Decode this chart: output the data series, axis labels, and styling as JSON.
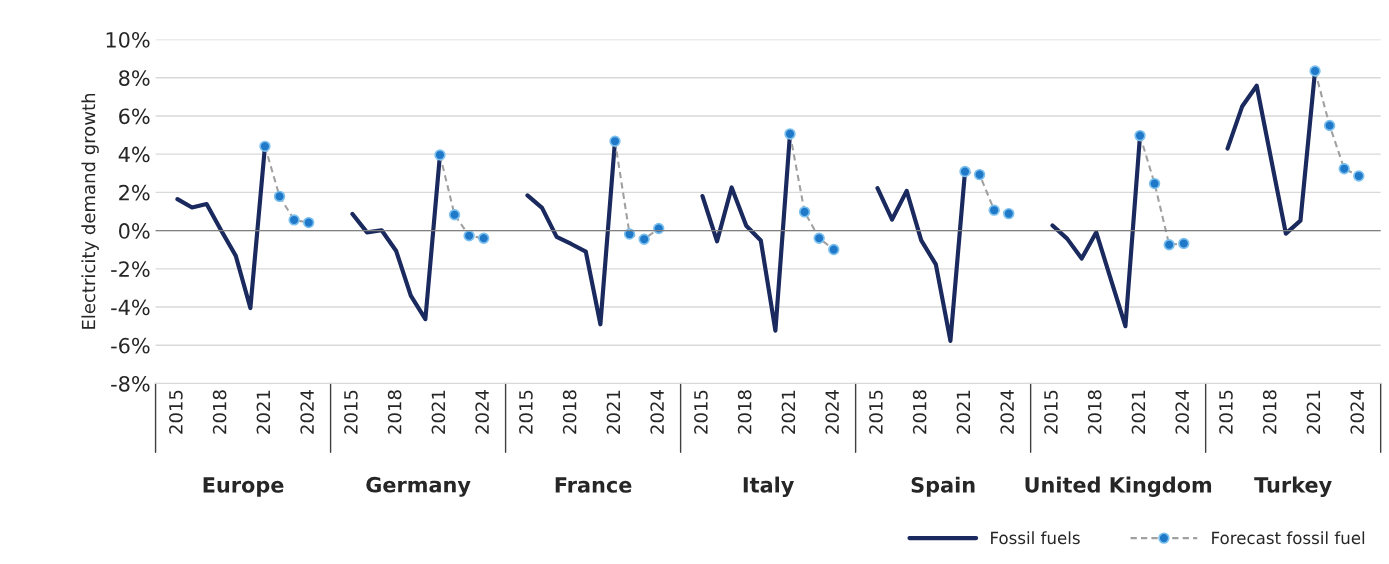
{
  "chart_data": {
    "type": "line",
    "ylabel": "Electricity demand growth",
    "categories": [
      null,
      "2015",
      null,
      null,
      "2018",
      null,
      null,
      "2021",
      null,
      null,
      "2024",
      null,
      null,
      "2015",
      null,
      null,
      "2018",
      null,
      null,
      "2021",
      null,
      null,
      "2024",
      null,
      null,
      "2015",
      null,
      null,
      "2018",
      null,
      null,
      "2021",
      null,
      null,
      "2024",
      null,
      null,
      "2015",
      null,
      null,
      "2018",
      null,
      null,
      "2021",
      null,
      null,
      "2024",
      null,
      null,
      "2015",
      null,
      null,
      "2018",
      null,
      null,
      "2021",
      null,
      null,
      "2024",
      null,
      null,
      "2015",
      null,
      null,
      "2018",
      null,
      null,
      "2021",
      null,
      null,
      "2024",
      null,
      null,
      "2015",
      null,
      null,
      "2018",
      null,
      null,
      "2021",
      null,
      null,
      "2024",
      null
    ],
    "series": [
      {
        "name": "Fossil fuels",
        "color": "#1b2a5e",
        "line_style": "solid",
        "marker": "none",
        "values": [
          null,
          1.65,
          1.21,
          1.39,
          0.0,
          -1.32,
          -4.05,
          4.41,
          null,
          null,
          null,
          null,
          null,
          0.87,
          -0.09,
          0.02,
          -1.07,
          -3.4,
          -4.63,
          3.96,
          null,
          null,
          null,
          null,
          null,
          1.84,
          1.19,
          -0.33,
          -0.7,
          -1.1,
          -4.9,
          4.68,
          null,
          null,
          null,
          null,
          null,
          1.81,
          -0.56,
          2.26,
          0.25,
          -0.52,
          -5.23,
          5.06,
          null,
          null,
          null,
          null,
          null,
          2.22,
          0.58,
          2.08,
          -0.51,
          -1.77,
          -5.77,
          3.09,
          null,
          null,
          null,
          null,
          null,
          0.27,
          -0.42,
          -1.46,
          -0.09,
          -2.55,
          -5.0,
          4.97,
          null,
          null,
          null,
          null,
          null,
          4.29,
          6.49,
          7.58,
          3.7,
          -0.16,
          0.52,
          8.35,
          null,
          null,
          null,
          null
        ]
      },
      {
        "name": "Forecast fossil fuel",
        "color": "#1f78c8",
        "line_style": "dashed",
        "marker": "circle",
        "values": [
          null,
          null,
          null,
          null,
          null,
          null,
          null,
          4.41,
          1.79,
          0.56,
          0.42,
          null,
          null,
          null,
          null,
          null,
          null,
          null,
          null,
          3.96,
          0.83,
          -0.27,
          -0.4,
          null,
          null,
          null,
          null,
          null,
          null,
          null,
          null,
          4.68,
          -0.18,
          -0.45,
          0.11,
          null,
          null,
          null,
          null,
          null,
          null,
          null,
          null,
          5.06,
          0.98,
          -0.4,
          -0.99,
          null,
          null,
          null,
          null,
          null,
          null,
          null,
          null,
          3.09,
          2.93,
          1.07,
          0.89,
          null,
          null,
          null,
          null,
          null,
          null,
          null,
          null,
          4.97,
          2.46,
          -0.74,
          -0.67,
          null,
          null,
          null,
          null,
          null,
          null,
          null,
          null,
          8.35,
          5.5,
          3.24,
          2.86,
          null
        ]
      }
    ],
    "annotations": [
      "Europe",
      "Germany",
      "France",
      "Italy",
      "Spain",
      "United Kingdom",
      "Turkey"
    ],
    "ylim": [
      -8,
      10
    ],
    "yticks": [
      {
        "value": -8,
        "label": "-8%"
      },
      {
        "value": -6,
        "label": "-6%"
      },
      {
        "value": -4,
        "label": "-4%"
      },
      {
        "value": -2,
        "label": "-2%"
      },
      {
        "value": 0,
        "label": "0%"
      },
      {
        "value": 2,
        "label": "2%"
      },
      {
        "value": 4,
        "label": "4%"
      },
      {
        "value": 6,
        "label": "6%"
      },
      {
        "value": 8,
        "label": "8%"
      },
      {
        "value": 10,
        "label": "10%"
      }
    ],
    "grid": "y",
    "legend": "bottom right"
  }
}
